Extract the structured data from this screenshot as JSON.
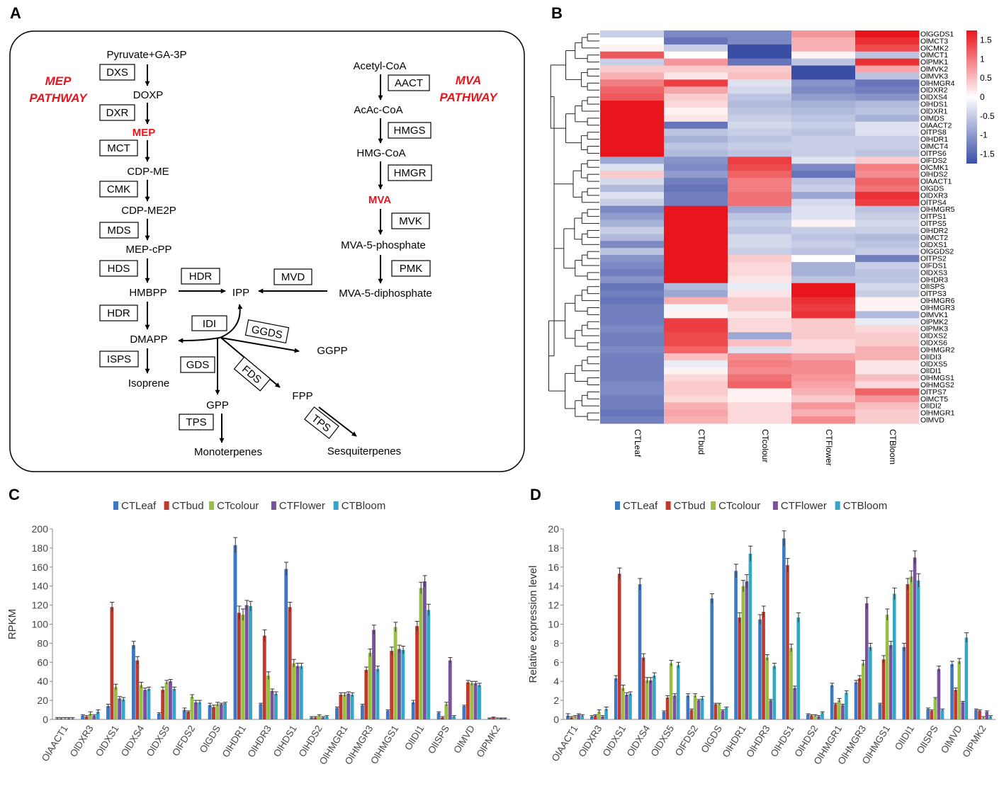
{
  "panel_labels": {
    "a": "A",
    "b": "B",
    "c": "C",
    "d": "D"
  },
  "colors": {
    "red": "#e8161c",
    "blue": "#3a4ea6",
    "series": [
      "#3d78c2",
      "#c0392f",
      "#98be45",
      "#7a519e",
      "#34a6c6"
    ]
  },
  "pathway": {
    "mep_title": [
      "MEP",
      "PATHWAY"
    ],
    "mva_title": [
      "MVA",
      "PATHWAY"
    ],
    "metabolites": {
      "pyruvate": "Pyruvate+GA-3P",
      "doxp": "DOXP",
      "mep": "MEP",
      "cdpme": "CDP-ME",
      "cdpme2p": "CDP-ME2P",
      "mepcpp": "MEP-cPP",
      "hmbpp": "HMBPP",
      "dmapp": "DMAPP",
      "isoprene": "Isoprene",
      "ipp": "IPP",
      "acetylcoa": "Acetyl-CoA",
      "acaccoa": "AcAc-CoA",
      "hmgcoa": "HMG-CoA",
      "mva": "MVA",
      "mva5p": "MVA-5-phosphate",
      "mva5pp": "MVA-5-diphosphate",
      "ggpp": "GGPP",
      "fpp": "FPP",
      "gpp": "GPP",
      "monoterpenes": "Monoterpenes",
      "sesquiterpenes": "Sesquiterpenes"
    },
    "enzymes": {
      "dxs": "DXS",
      "dxr": "DXR",
      "mct": "MCT",
      "cmk": "CMK",
      "mds": "MDS",
      "hds": "HDS",
      "hdr1": "HDR",
      "hdr2": "HDR",
      "isps": "ISPS",
      "aact": "AACT",
      "hmgs": "HMGS",
      "hmgr": "HMGR",
      "mvk": "MVK",
      "pmk": "PMK",
      "mvd": "MVD",
      "idi": "IDI",
      "ggds": "GGDS",
      "gds": "GDS",
      "fds": "FDS",
      "tps1": "TPS",
      "tps2": "TPS"
    }
  },
  "heatmap": {
    "samples": [
      "CTLeaf",
      "CTbud",
      "CTcolour",
      "CTFlower",
      "CTBloom"
    ],
    "genes": [
      "OlGGDS1",
      "OlMCT3",
      "OlCMK2",
      "OlMCT1",
      "OlPMK1",
      "OlMVK2",
      "OlMVK3",
      "OlHMGR4",
      "OlDXR2",
      "OlDXS4",
      "OlHDS1",
      "OlDXR1",
      "OlMDS",
      "OlAACT2",
      "OlTPS8",
      "OlHDR1",
      "OlMCT4",
      "OlTPS6",
      "OlFDS2",
      "OlCMK1",
      "OlHDS2",
      "OlAACT1",
      "OlGDS",
      "OlDXR3",
      "OlTPS4",
      "OlHMGR5",
      "OlTPS1",
      "OlTPS5",
      "OlHDR2",
      "OlMCT2",
      "OlDXS1",
      "OlGGDS2",
      "OlTPS2",
      "OlFDS1",
      "OlDXS3",
      "OlHDR3",
      "OlISPS",
      "OlTPS3",
      "OlHMGR6",
      "OlHMGR3",
      "OlMVK1",
      "OlPMK2",
      "OlPMK3",
      "OlDXS2",
      "OlDXS6",
      "OlHMGR2",
      "OlIDI3",
      "OlDXS5",
      "OlIDI1",
      "OlHMGS1",
      "OlHMGS2",
      "OlTPS7",
      "OlMCT5",
      "OlIDI2",
      "OlHMGR1",
      "OlMVD"
    ],
    "values": [
      [
        -0.5,
        -1.2,
        -1.2,
        0.8,
        1.8
      ],
      [
        0,
        -1.4,
        -1.2,
        0.6,
        1.6
      ],
      [
        0.1,
        -0.5,
        -1.8,
        0.6,
        1.4
      ],
      [
        1.3,
        0,
        -1.8,
        0.1,
        -0.6
      ],
      [
        -0.5,
        0.8,
        -1.4,
        -0.6,
        1.6
      ],
      [
        0.4,
        0.4,
        0.4,
        -1.8,
        0.7
      ],
      [
        0.6,
        0.2,
        0.5,
        -1.8,
        -0.6
      ],
      [
        1.0,
        1.5,
        -0.3,
        -1.1,
        -1.4
      ],
      [
        1.2,
        0.7,
        -0.4,
        -1.2,
        -1.3
      ],
      [
        1.3,
        0.4,
        -0.6,
        -1.0,
        -1.1
      ],
      [
        1.8,
        0.3,
        -0.7,
        -0.8,
        -0.7
      ],
      [
        1.8,
        0.1,
        -0.6,
        -0.7,
        -0.6
      ],
      [
        1.8,
        0.2,
        -0.5,
        -0.6,
        -0.8
      ],
      [
        1.8,
        -1.4,
        -0.4,
        -0.5,
        -0.3
      ],
      [
        1.8,
        -0.6,
        -0.5,
        -0.6,
        -0.3
      ],
      [
        1.8,
        -0.8,
        -0.6,
        -0.5,
        -0.5
      ],
      [
        1.8,
        -0.6,
        -0.5,
        -0.5,
        -0.5
      ],
      [
        1.8,
        -0.7,
        -0.6,
        -0.5,
        -0.6
      ],
      [
        -0.9,
        -1.1,
        1.5,
        -0.3,
        0.4
      ],
      [
        -0.3,
        -1.2,
        1.4,
        -1.2,
        1.0
      ],
      [
        0.4,
        -1.0,
        1.2,
        -1.4,
        0.9
      ],
      [
        -0.4,
        -1.3,
        1.0,
        -0.6,
        1.2
      ],
      [
        -0.7,
        -1.4,
        1.0,
        -0.5,
        1.1
      ],
      [
        -0.3,
        -1.3,
        1.1,
        -0.9,
        1.6
      ],
      [
        -0.5,
        -1.3,
        1.1,
        -0.4,
        1.5
      ],
      [
        -1.2,
        1.8,
        -0.9,
        -0.3,
        -0.6
      ],
      [
        -1.0,
        1.8,
        -0.6,
        -0.3,
        -0.5
      ],
      [
        -0.8,
        1.8,
        -0.5,
        0.1,
        -0.4
      ],
      [
        -0.5,
        1.8,
        -0.6,
        -0.5,
        -0.5
      ],
      [
        -0.7,
        1.8,
        -0.4,
        -0.6,
        -0.7
      ],
      [
        -1.2,
        1.8,
        -0.4,
        -0.5,
        -0.6
      ],
      [
        -0.6,
        1.8,
        -0.5,
        -0.6,
        -0.5
      ],
      [
        -1.1,
        1.8,
        0.4,
        0,
        -1.3
      ],
      [
        -1.2,
        1.8,
        0.3,
        -0.8,
        -0.5
      ],
      [
        -1.3,
        1.8,
        0.3,
        -0.8,
        -0.6
      ],
      [
        -1.1,
        1.8,
        0.2,
        -0.6,
        -0.6
      ],
      [
        -1.4,
        -0.7,
        -0.2,
        1.8,
        -0.4
      ],
      [
        -1.3,
        -0.9,
        0.2,
        1.8,
        -0.5
      ],
      [
        -1.4,
        0.6,
        0.4,
        1.6,
        0.1
      ],
      [
        -1.3,
        -0.1,
        0.4,
        1.5,
        0.1
      ],
      [
        -1.3,
        0.1,
        0.2,
        1.6,
        -0.7
      ],
      [
        -1.3,
        1.5,
        0.3,
        0.4,
        -0.2
      ],
      [
        -1.2,
        1.5,
        0.3,
        0.4,
        0.3
      ],
      [
        -1.3,
        1.4,
        -0.9,
        0.4,
        0.4
      ],
      [
        -1.3,
        1.4,
        0.5,
        0.3,
        0.4
      ],
      [
        -1.2,
        1.2,
        -0.3,
        0.3,
        0.6
      ],
      [
        -1.3,
        0.5,
        0.9,
        0.7,
        0.6
      ],
      [
        -1.3,
        -0.2,
        1.0,
        0.9,
        0.2
      ],
      [
        -1.3,
        0.1,
        0.9,
        0.9,
        0.2
      ],
      [
        -1.3,
        0.3,
        1.1,
        0.8,
        0.5
      ],
      [
        -1.2,
        0.4,
        1.2,
        0.7,
        0.3
      ],
      [
        -1.2,
        0.4,
        0.1,
        0.6,
        1.2
      ],
      [
        -1.3,
        0.3,
        0.1,
        0.4,
        0.8
      ],
      [
        -1.3,
        0.6,
        0.3,
        0.8,
        0.5
      ],
      [
        -1.4,
        0.7,
        0.3,
        0.6,
        0.4
      ],
      [
        -1.3,
        0.6,
        0.3,
        0.9,
        0.4
      ]
    ],
    "legend_ticks": [
      "1.5",
      "1",
      "0.5",
      "0",
      "-0.5",
      "-1",
      "-1.5"
    ],
    "legend_values": [
      1.5,
      1,
      0.5,
      0,
      -0.5,
      -1,
      -1.5
    ]
  },
  "chart_data": [
    {
      "type": "bar",
      "title": "",
      "xlabel": "",
      "ylabel": "RPKM",
      "ylim": [
        0,
        200
      ],
      "yticks": [
        "0",
        "20",
        "40",
        "60",
        "80",
        "100",
        "120",
        "140",
        "160",
        "180",
        "200"
      ],
      "categories": [
        "OlAACT1",
        "OlDXR3",
        "OlDXS1",
        "OlDXS4",
        "OlDXS5",
        "OlFDS2",
        "OlGDS",
        "OlHDR1",
        "OlHDR3",
        "OlHDS1",
        "OlHDS2",
        "OlHMGR1",
        "OlHMGR3",
        "OlHMGS1",
        "OlIDI1",
        "OlISPS",
        "OlMVD",
        "OlPMK2"
      ],
      "series": [
        {
          "name": "CTLeaf",
          "values": [
            1,
            4,
            14,
            78,
            6,
            10,
            15,
            183,
            16,
            158,
            2,
            12,
            15,
            9,
            18,
            7,
            14,
            1
          ],
          "errors": [
            1,
            1,
            2,
            4,
            1,
            2,
            2,
            8,
            1,
            7,
            1,
            1,
            1,
            1,
            2,
            1,
            1,
            0.5
          ]
        },
        {
          "name": "CTbud",
          "values": [
            1,
            3,
            118,
            62,
            31,
            8,
            13,
            112,
            88,
            118,
            2,
            26,
            52,
            72,
            98,
            2,
            39,
            2
          ],
          "errors": [
            1,
            1,
            5,
            4,
            3,
            1,
            2,
            7,
            6,
            5,
            1,
            2,
            3,
            4,
            5,
            1,
            2,
            0.5
          ]
        },
        {
          "name": "CTcolour",
          "values": [
            1,
            6,
            34,
            36,
            39,
            24,
            16,
            110,
            46,
            59,
            4,
            26,
            70,
            97,
            138,
            16,
            38,
            1
          ],
          "errors": [
            1,
            2,
            3,
            3,
            2,
            2,
            2,
            6,
            4,
            4,
            1,
            2,
            4,
            5,
            6,
            2,
            2,
            0.5
          ]
        },
        {
          "name": "CTFlower",
          "values": [
            1,
            4,
            22,
            31,
            40,
            18,
            16,
            120,
            30,
            56,
            2,
            27,
            94,
            74,
            145,
            62,
            38,
            1
          ],
          "errors": [
            1,
            1,
            2,
            2,
            2,
            2,
            1,
            5,
            2,
            3,
            1,
            2,
            5,
            4,
            6,
            3,
            2,
            0.5
          ]
        },
        {
          "name": "CTBloom",
          "values": [
            1,
            8,
            21,
            32,
            32,
            18,
            17,
            119,
            27,
            56,
            3,
            26,
            53,
            73,
            115,
            3,
            36,
            1
          ],
          "errors": [
            1,
            2,
            2,
            2,
            2,
            2,
            1,
            5,
            2,
            3,
            1,
            2,
            3,
            4,
            6,
            1,
            2,
            0.5
          ]
        }
      ]
    },
    {
      "type": "bar",
      "title": "",
      "xlabel": "",
      "ylabel": "Relative expression  level",
      "ylim": [
        0,
        20
      ],
      "yticks": [
        "0",
        "2",
        "4",
        "6",
        "8",
        "10",
        "12",
        "14",
        "16",
        "18",
        "20"
      ],
      "categories": [
        "OlAACT1",
        "OlDXR3",
        "OlDXS1",
        "OlDXS4",
        "OlDXS5",
        "OlFDS2",
        "OlGDS",
        "OlHDR1",
        "OlHDR3",
        "OlHDS1",
        "OlHDS2",
        "OlHMGR1",
        "OlHMGR3",
        "OlHMGS1",
        "OlIDI1",
        "OlISPS",
        "OlMVD",
        "OlPMK2"
      ],
      "series": [
        {
          "name": "CTLeaf",
          "values": [
            0.4,
            0.3,
            4.3,
            14.2,
            0.8,
            2.5,
            12.7,
            15.6,
            10.5,
            19.0,
            0.5,
            3.6,
            3.9,
            1.6,
            7.6,
            1.1,
            5.8,
            1.0
          ],
          "errors": [
            0.2,
            0.1,
            0.3,
            0.6,
            0.1,
            0.2,
            0.5,
            0.7,
            0.5,
            0.8,
            0.1,
            0.2,
            0.2,
            0.1,
            0.4,
            0.1,
            0.3,
            0.1
          ]
        },
        {
          "name": "CTbud",
          "values": [
            0.2,
            0.4,
            15.3,
            6.5,
            2.3,
            1.0,
            1.6,
            10.7,
            11.3,
            16.2,
            0.4,
            1.6,
            4.3,
            6.3,
            14.2,
            0.9,
            3.1,
            0.9
          ],
          "errors": [
            0.1,
            0.1,
            0.6,
            0.4,
            0.2,
            0.1,
            0.1,
            0.5,
            0.6,
            0.7,
            0.1,
            0.1,
            0.3,
            0.4,
            0.6,
            0.1,
            0.2,
            0.1
          ]
        },
        {
          "name": "CTcolour",
          "values": [
            0.3,
            0.8,
            3.3,
            4.1,
            5.9,
            2.5,
            1.6,
            14.0,
            6.5,
            7.5,
            0.4,
            2.0,
            5.9,
            11.0,
            15.0,
            2.2,
            6.1,
            0.2
          ],
          "errors": [
            0.1,
            0.2,
            0.3,
            0.3,
            0.3,
            0.2,
            0.1,
            0.6,
            0.3,
            0.4,
            0.1,
            0.2,
            0.3,
            0.6,
            0.6,
            0.1,
            0.3,
            0.1
          ]
        },
        {
          "name": "CTFlower",
          "values": [
            0.5,
            0.3,
            2.6,
            4.1,
            2.5,
            2.0,
            0.9,
            14.5,
            2.0,
            3.3,
            0.3,
            1.5,
            12.2,
            7.8,
            17.0,
            5.3,
            1.8,
            0.8
          ],
          "errors": [
            0.1,
            0.1,
            0.2,
            0.3,
            0.2,
            0.1,
            0.1,
            0.7,
            0.1,
            0.2,
            0.1,
            0.1,
            0.6,
            0.4,
            0.7,
            0.3,
            0.1,
            0.1
          ]
        },
        {
          "name": "CTBloom",
          "values": [
            0.4,
            1.1,
            2.7,
            4.6,
            5.7,
            2.2,
            1.2,
            17.4,
            5.6,
            10.7,
            0.7,
            2.8,
            7.6,
            13.2,
            14.6,
            1.0,
            8.6,
            0.3
          ],
          "errors": [
            0.1,
            0.2,
            0.2,
            0.3,
            0.3,
            0.2,
            0.1,
            0.8,
            0.3,
            0.5,
            0.1,
            0.2,
            0.4,
            0.6,
            0.7,
            0.1,
            0.5,
            0.1
          ]
        }
      ]
    }
  ]
}
